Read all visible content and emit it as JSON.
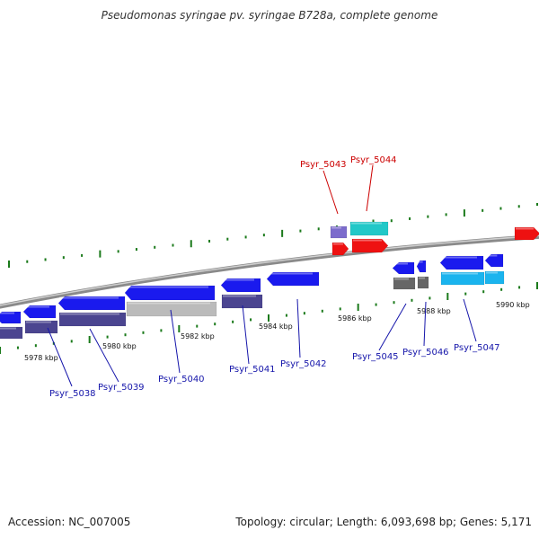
{
  "title": "Pseudomonas syringae pv. syringae B728a, complete genome",
  "footer": {
    "accession": "Accession: NC_007005",
    "summary": "Topology: circular; Length: 6,093,698 bp; Genes: 5,171"
  },
  "scale": {
    "ticks": [
      "5978 kbp",
      "5980 kbp",
      "5982 kbp",
      "5984 kbp",
      "5986 kbp",
      "5988 kbp",
      "5990 kbp"
    ]
  },
  "colors": {
    "gene_blue": "#1a1aee",
    "cds_purple": "#4b4590",
    "highlight_red": "#ee1111",
    "cyan": "#22c8c8",
    "light_blue": "#1ab4ee",
    "gray": "#bbbbbb",
    "dark_gray": "#666666",
    "tick_green": "#1b7a1b",
    "label_blue": "#1515aa",
    "label_red": "#cc0000"
  },
  "genes": [
    {
      "name": "Psyr_5038",
      "highlight": false
    },
    {
      "name": "Psyr_5039",
      "highlight": false
    },
    {
      "name": "Psyr_5040",
      "highlight": false
    },
    {
      "name": "Psyr_5041",
      "highlight": false
    },
    {
      "name": "Psyr_5042",
      "highlight": false
    },
    {
      "name": "Psyr_5043",
      "highlight": true
    },
    {
      "name": "Psyr_5044",
      "highlight": true
    },
    {
      "name": "Psyr_5045",
      "highlight": false
    },
    {
      "name": "Psyr_5046",
      "highlight": false
    },
    {
      "name": "Psyr_5047",
      "highlight": false
    }
  ]
}
